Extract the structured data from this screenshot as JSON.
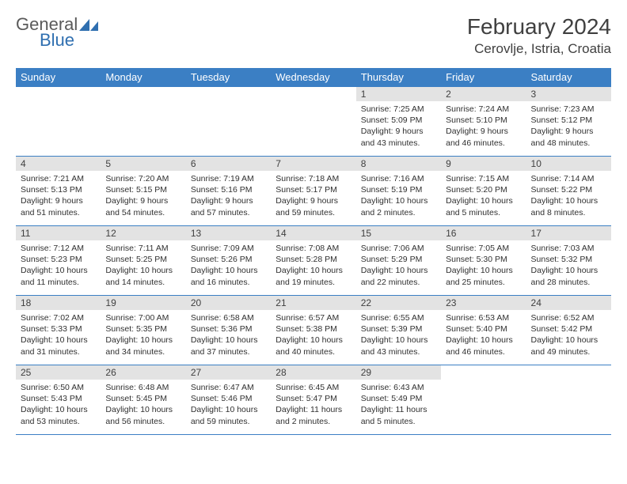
{
  "logo": {
    "text1": "General",
    "text2": "Blue"
  },
  "header": {
    "title": "February 2024",
    "location": "Cerovlje, Istria, Croatia"
  },
  "colors": {
    "header_bg": "#3b7fc4",
    "header_text": "#ffffff",
    "daynum_bg": "#e3e3e3",
    "border": "#3b7fc4",
    "text": "#303030",
    "logo_gray": "#5a5a5a",
    "logo_blue": "#2f6fb0"
  },
  "weekdays": [
    "Sunday",
    "Monday",
    "Tuesday",
    "Wednesday",
    "Thursday",
    "Friday",
    "Saturday"
  ],
  "weeks": [
    [
      null,
      null,
      null,
      null,
      {
        "n": "1",
        "sr": "7:25 AM",
        "ss": "5:09 PM",
        "dl": "9 hours and 43 minutes."
      },
      {
        "n": "2",
        "sr": "7:24 AM",
        "ss": "5:10 PM",
        "dl": "9 hours and 46 minutes."
      },
      {
        "n": "3",
        "sr": "7:23 AM",
        "ss": "5:12 PM",
        "dl": "9 hours and 48 minutes."
      }
    ],
    [
      {
        "n": "4",
        "sr": "7:21 AM",
        "ss": "5:13 PM",
        "dl": "9 hours and 51 minutes."
      },
      {
        "n": "5",
        "sr": "7:20 AM",
        "ss": "5:15 PM",
        "dl": "9 hours and 54 minutes."
      },
      {
        "n": "6",
        "sr": "7:19 AM",
        "ss": "5:16 PM",
        "dl": "9 hours and 57 minutes."
      },
      {
        "n": "7",
        "sr": "7:18 AM",
        "ss": "5:17 PM",
        "dl": "9 hours and 59 minutes."
      },
      {
        "n": "8",
        "sr": "7:16 AM",
        "ss": "5:19 PM",
        "dl": "10 hours and 2 minutes."
      },
      {
        "n": "9",
        "sr": "7:15 AM",
        "ss": "5:20 PM",
        "dl": "10 hours and 5 minutes."
      },
      {
        "n": "10",
        "sr": "7:14 AM",
        "ss": "5:22 PM",
        "dl": "10 hours and 8 minutes."
      }
    ],
    [
      {
        "n": "11",
        "sr": "7:12 AM",
        "ss": "5:23 PM",
        "dl": "10 hours and 11 minutes."
      },
      {
        "n": "12",
        "sr": "7:11 AM",
        "ss": "5:25 PM",
        "dl": "10 hours and 14 minutes."
      },
      {
        "n": "13",
        "sr": "7:09 AM",
        "ss": "5:26 PM",
        "dl": "10 hours and 16 minutes."
      },
      {
        "n": "14",
        "sr": "7:08 AM",
        "ss": "5:28 PM",
        "dl": "10 hours and 19 minutes."
      },
      {
        "n": "15",
        "sr": "7:06 AM",
        "ss": "5:29 PM",
        "dl": "10 hours and 22 minutes."
      },
      {
        "n": "16",
        "sr": "7:05 AM",
        "ss": "5:30 PM",
        "dl": "10 hours and 25 minutes."
      },
      {
        "n": "17",
        "sr": "7:03 AM",
        "ss": "5:32 PM",
        "dl": "10 hours and 28 minutes."
      }
    ],
    [
      {
        "n": "18",
        "sr": "7:02 AM",
        "ss": "5:33 PM",
        "dl": "10 hours and 31 minutes."
      },
      {
        "n": "19",
        "sr": "7:00 AM",
        "ss": "5:35 PM",
        "dl": "10 hours and 34 minutes."
      },
      {
        "n": "20",
        "sr": "6:58 AM",
        "ss": "5:36 PM",
        "dl": "10 hours and 37 minutes."
      },
      {
        "n": "21",
        "sr": "6:57 AM",
        "ss": "5:38 PM",
        "dl": "10 hours and 40 minutes."
      },
      {
        "n": "22",
        "sr": "6:55 AM",
        "ss": "5:39 PM",
        "dl": "10 hours and 43 minutes."
      },
      {
        "n": "23",
        "sr": "6:53 AM",
        "ss": "5:40 PM",
        "dl": "10 hours and 46 minutes."
      },
      {
        "n": "24",
        "sr": "6:52 AM",
        "ss": "5:42 PM",
        "dl": "10 hours and 49 minutes."
      }
    ],
    [
      {
        "n": "25",
        "sr": "6:50 AM",
        "ss": "5:43 PM",
        "dl": "10 hours and 53 minutes."
      },
      {
        "n": "26",
        "sr": "6:48 AM",
        "ss": "5:45 PM",
        "dl": "10 hours and 56 minutes."
      },
      {
        "n": "27",
        "sr": "6:47 AM",
        "ss": "5:46 PM",
        "dl": "10 hours and 59 minutes."
      },
      {
        "n": "28",
        "sr": "6:45 AM",
        "ss": "5:47 PM",
        "dl": "11 hours and 2 minutes."
      },
      {
        "n": "29",
        "sr": "6:43 AM",
        "ss": "5:49 PM",
        "dl": "11 hours and 5 minutes."
      },
      null,
      null
    ]
  ],
  "labels": {
    "sunrise": "Sunrise:",
    "sunset": "Sunset:",
    "daylight": "Daylight:"
  }
}
